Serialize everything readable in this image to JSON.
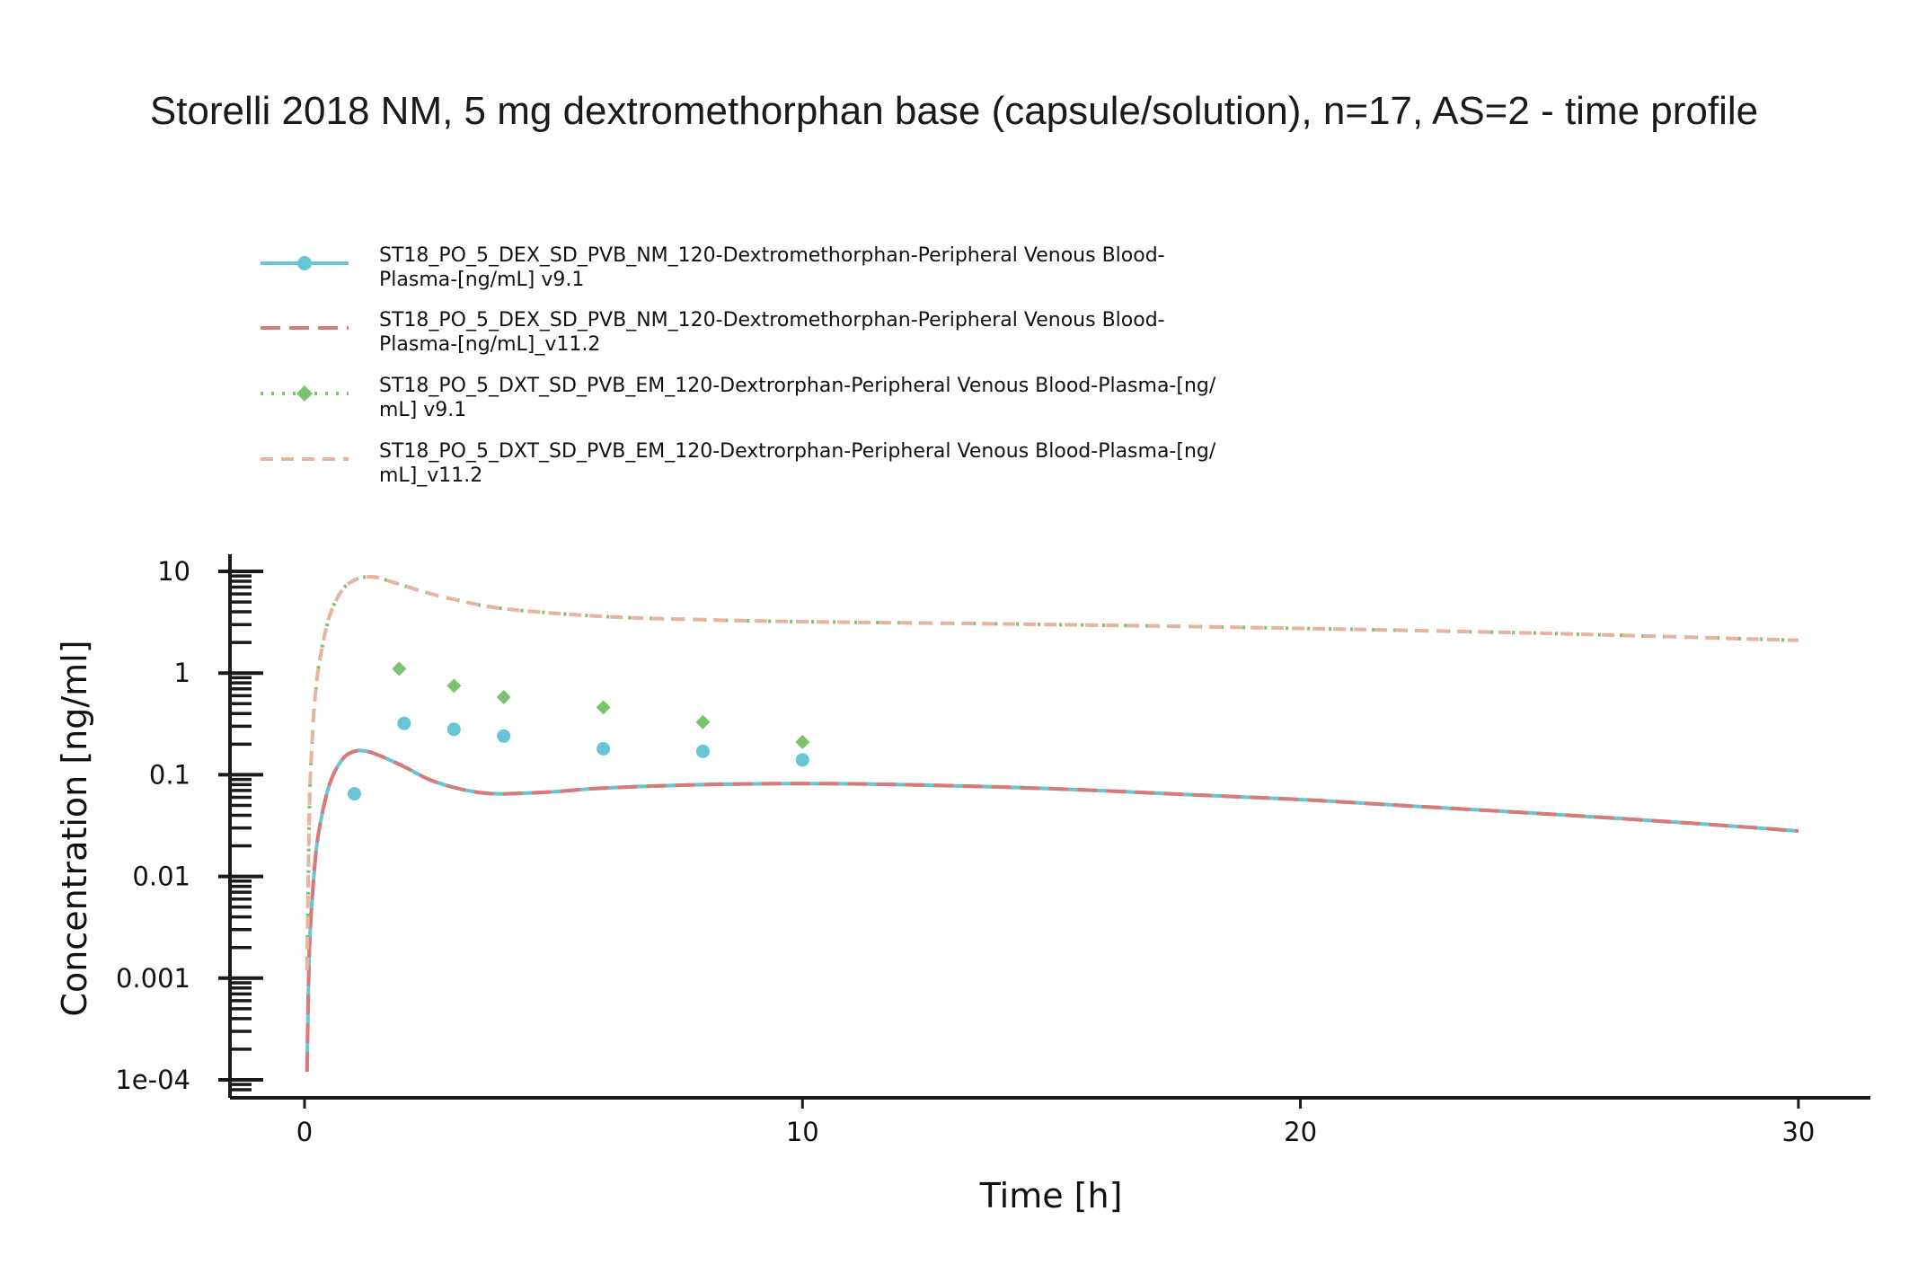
{
  "chart_data": {
    "type": "line",
    "title": "Storelli 2018 NM, 5 mg dextromethorphan base (capsule/solution), n=17, AS=2 - time profile",
    "xlabel": "Time [h]",
    "ylabel": "Concentration [ng/ml]",
    "xlim": [
      -1.5,
      31.5
    ],
    "ylim": [
      5e-05,
      15
    ],
    "yscale": "log",
    "x_ticks": [
      0,
      10,
      20,
      30
    ],
    "x_tick_labels": [
      "0",
      "10",
      "20",
      "30"
    ],
    "y_ticks": [
      0.0001,
      0.001,
      0.01,
      0.1,
      1,
      10
    ],
    "y_tick_labels": [
      "1e-04",
      "0.001",
      "0.01",
      "0.1",
      "1",
      "10"
    ],
    "legend_position": "top-left",
    "series": [
      {
        "name": "ST18_PO_5_DEX_SD_PVB_NM_120-Dextromethorphan-Peripheral Venous Blood-Plasma-[ng/mL] v9.1",
        "legend_lines": [
          "ST18_PO_5_DEX_SD_PVB_NM_120-Dextromethorphan-Peripheral Venous Blood-",
          "Plasma-[ng/mL] v9.1"
        ],
        "color": "#67c5d6",
        "line_style": "solid",
        "marker": "circle",
        "x": [
          0.05,
          0.1,
          0.2,
          0.3,
          0.5,
          0.75,
          1.0,
          1.25,
          1.5,
          2.0,
          2.5,
          3.0,
          3.5,
          4.0,
          5.0,
          6.0,
          8.0,
          10.0,
          12.0,
          15.0,
          18.0,
          20.0,
          22.0,
          25.0,
          28.0,
          30.0
        ],
        "y": [
          0.00012,
          0.002,
          0.012,
          0.03,
          0.08,
          0.14,
          0.17,
          0.17,
          0.155,
          0.12,
          0.09,
          0.075,
          0.067,
          0.065,
          0.068,
          0.074,
          0.08,
          0.082,
          0.08,
          0.073,
          0.063,
          0.057,
          0.05,
          0.041,
          0.033,
          0.028
        ],
        "observed": {
          "x": [
            1,
            2,
            3,
            4,
            6,
            8,
            10
          ],
          "y": [
            0.065,
            0.32,
            0.28,
            0.24,
            0.18,
            0.17,
            0.14
          ]
        }
      },
      {
        "name": "ST18_PO_5_DEX_SD_PVB_NM_120-Dextromethorphan-Peripheral Venous Blood-Plasma-[ng/mL]_v11.2",
        "legend_lines": [
          "ST18_PO_5_DEX_SD_PVB_NM_120-Dextromethorphan-Peripheral Venous Blood-",
          "Plasma-[ng/mL]_v11.2"
        ],
        "color": "#d97a7a",
        "line_style": "dashed",
        "marker": "none",
        "x": [
          0.05,
          0.1,
          0.2,
          0.3,
          0.5,
          0.75,
          1.0,
          1.25,
          1.5,
          2.0,
          2.5,
          3.0,
          3.5,
          4.0,
          5.0,
          6.0,
          8.0,
          10.0,
          12.0,
          15.0,
          18.0,
          20.0,
          22.0,
          25.0,
          28.0,
          30.0
        ],
        "y": [
          0.00012,
          0.002,
          0.012,
          0.03,
          0.08,
          0.14,
          0.17,
          0.17,
          0.155,
          0.12,
          0.09,
          0.075,
          0.067,
          0.065,
          0.068,
          0.074,
          0.08,
          0.082,
          0.08,
          0.073,
          0.063,
          0.057,
          0.05,
          0.041,
          0.033,
          0.028
        ]
      },
      {
        "name": "ST18_PO_5_DXT_SD_PVB_EM_120-Dextrorphan-Peripheral Venous Blood-Plasma-[ng/mL] v9.1",
        "legend_lines": [
          "ST18_PO_5_DXT_SD_PVB_EM_120-Dextrorphan-Peripheral Venous Blood-Plasma-[ng/",
          "mL] v9.1"
        ],
        "color": "#7bc46e",
        "line_style": "dotted",
        "marker": "diamond",
        "x": [
          0.05,
          0.1,
          0.15,
          0.2,
          0.3,
          0.5,
          0.75,
          1.0,
          1.25,
          1.5,
          2.0,
          2.5,
          3.0,
          4.0,
          6.0,
          8.0,
          10.0,
          15.0,
          20.0,
          25.0,
          30.0
        ],
        "y": [
          0.0012,
          0.05,
          0.2,
          0.5,
          1.3,
          3.6,
          6.5,
          8.2,
          8.8,
          8.6,
          7.2,
          6.1,
          5.3,
          4.3,
          3.6,
          3.35,
          3.2,
          3.0,
          2.75,
          2.45,
          2.1
        ],
        "observed": {
          "x": [
            1.9,
            3,
            4,
            6,
            8,
            10
          ],
          "y": [
            1.1,
            0.75,
            0.58,
            0.46,
            0.33,
            0.21
          ]
        }
      },
      {
        "name": "ST18_PO_5_DXT_SD_PVB_EM_120-Dextrorphan-Peripheral Venous Blood-Plasma-[ng/mL]_v11.2",
        "legend_lines": [
          "ST18_PO_5_DXT_SD_PVB_EM_120-Dextrorphan-Peripheral Venous Blood-Plasma-[ng/",
          "mL]_v11.2"
        ],
        "color": "#e8b4a0",
        "line_style": "dashed",
        "marker": "none",
        "x": [
          0.05,
          0.1,
          0.15,
          0.2,
          0.3,
          0.5,
          0.75,
          1.0,
          1.25,
          1.5,
          2.0,
          2.5,
          3.0,
          4.0,
          6.0,
          8.0,
          10.0,
          15.0,
          20.0,
          25.0,
          30.0
        ],
        "y": [
          0.0012,
          0.05,
          0.2,
          0.5,
          1.3,
          3.6,
          6.5,
          8.2,
          8.8,
          8.6,
          7.2,
          6.1,
          5.3,
          4.3,
          3.6,
          3.35,
          3.2,
          3.0,
          2.75,
          2.45,
          2.1
        ]
      }
    ]
  }
}
